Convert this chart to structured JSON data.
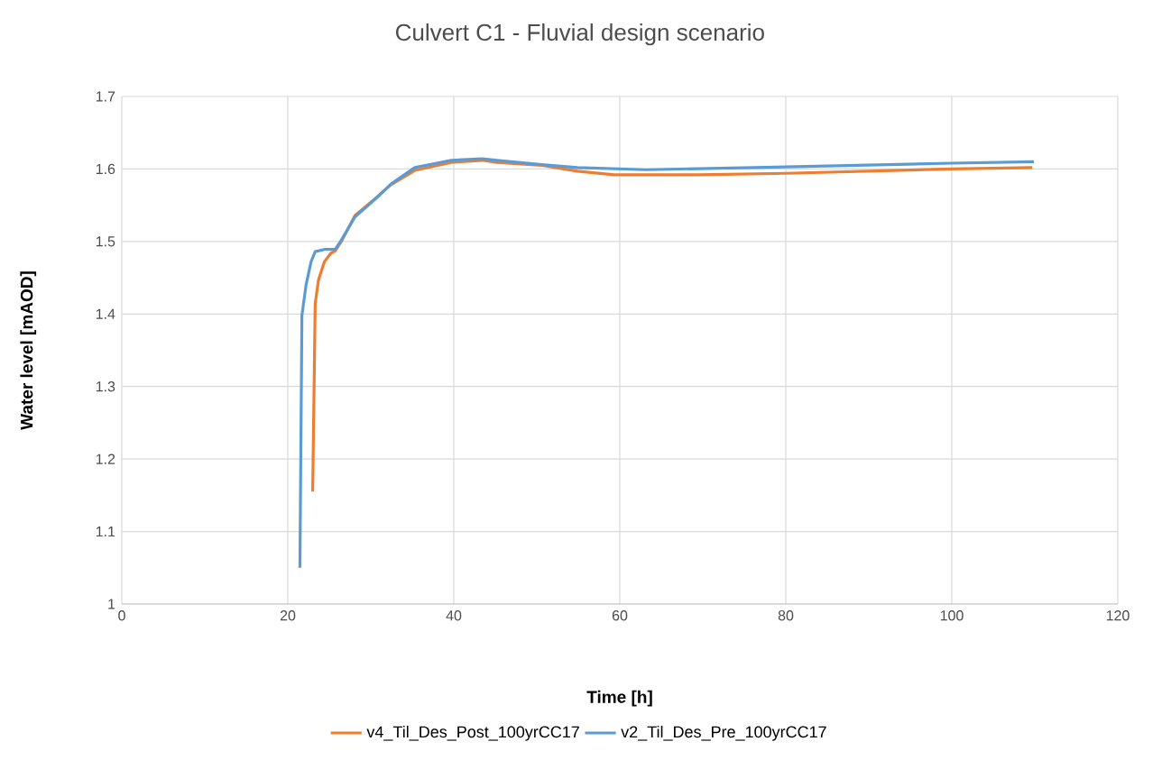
{
  "chart_data": {
    "type": "line",
    "title": "Culvert C1 - Fluvial design scenario",
    "xlabel": "Time [h]",
    "ylabel": "Water level [mAOD]",
    "xlim": [
      0,
      120
    ],
    "xticks": [
      0,
      20,
      40,
      60,
      80,
      100,
      120
    ],
    "ylim": [
      1,
      1.7
    ],
    "yticks": [
      1,
      1.1,
      1.2,
      1.3,
      1.4,
      1.5,
      1.6,
      1.7
    ],
    "grid": true,
    "legend": "bottom",
    "marker": "none",
    "line_style": "solid",
    "series": [
      {
        "name": "v4_Til_Des_Post_100yrCC17",
        "color": "#ed7d31",
        "x": [
          23.0,
          23.3,
          23.7,
          24.4,
          25.2,
          25.7,
          26.4,
          28.1,
          30.6,
          32.4,
          35.3,
          39.7,
          43.4,
          45.2,
          50.6,
          54.9,
          59.3,
          69.5,
          80,
          100,
          109.7
        ],
        "values": [
          1.155,
          1.414,
          1.447,
          1.472,
          1.484,
          1.487,
          1.499,
          1.536,
          1.56,
          1.578,
          1.598,
          1.609,
          1.612,
          1.609,
          1.605,
          1.597,
          1.592,
          1.592,
          1.594,
          1.6,
          1.602
        ]
      },
      {
        "name": "v2_Til_Des_Pre_100yrCC17",
        "color": "#5b9bd5",
        "x": [
          21.46,
          21.7,
          22.2,
          22.8,
          23.3,
          24.4,
          25.7,
          26.4,
          28.1,
          30.6,
          32.4,
          35.3,
          39.7,
          43.4,
          45.2,
          50.6,
          54.9,
          63.2,
          80,
          100,
          109.9
        ],
        "values": [
          1.05,
          1.398,
          1.44,
          1.472,
          1.486,
          1.489,
          1.489,
          1.501,
          1.534,
          1.559,
          1.579,
          1.602,
          1.612,
          1.614,
          1.612,
          1.606,
          1.602,
          1.599,
          1.603,
          1.608,
          1.61
        ]
      }
    ]
  }
}
